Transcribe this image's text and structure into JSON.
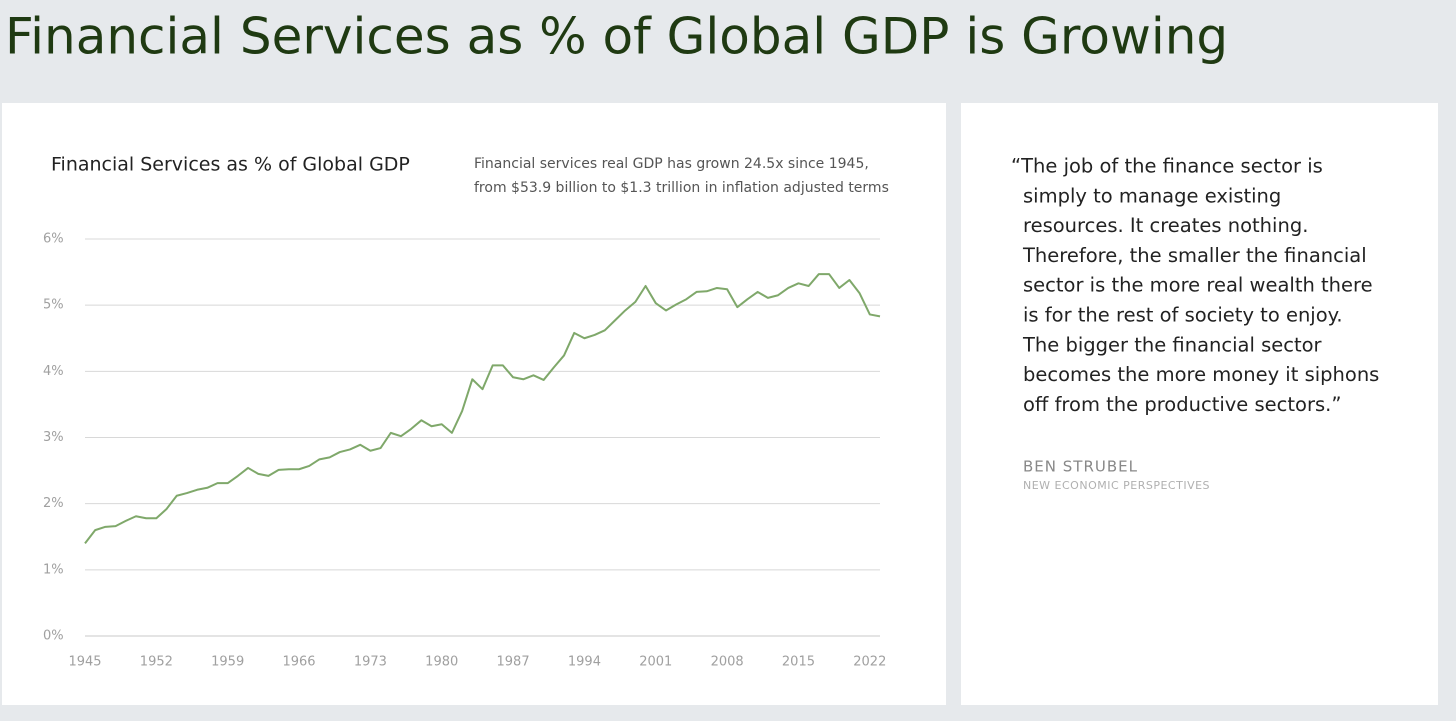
{
  "page_title": "Financial Services as % of Global GDP is Growing",
  "chart_data": {
    "type": "line",
    "title": "Financial Services as % of Global GDP",
    "subtitle": [
      "Financial services real GDP has grown 24.5x since 1945,",
      "from $53.9 billion to $1.3 trillion in inflation adjusted terms"
    ],
    "x": [
      1945,
      1946,
      1947,
      1948,
      1949,
      1950,
      1951,
      1952,
      1953,
      1954,
      1955,
      1956,
      1957,
      1958,
      1959,
      1960,
      1961,
      1962,
      1963,
      1964,
      1965,
      1966,
      1967,
      1968,
      1969,
      1970,
      1971,
      1972,
      1973,
      1974,
      1975,
      1976,
      1977,
      1978,
      1979,
      1980,
      1981,
      1982,
      1983,
      1984,
      1985,
      1986,
      1987,
      1988,
      1989,
      1990,
      1991,
      1992,
      1993,
      1994,
      1995,
      1996,
      1997,
      1998,
      1999,
      2000,
      2001,
      2002,
      2003,
      2004,
      2005,
      2006,
      2007,
      2008,
      2009,
      2010,
      2011,
      2012,
      2013,
      2014,
      2015,
      2016,
      2017,
      2018,
      2019,
      2020,
      2021,
      2022,
      2023
    ],
    "series": [
      {
        "name": "Financial Services as % of Global GDP",
        "color": "#7fa86a",
        "values": [
          1.4,
          1.6,
          1.65,
          1.66,
          1.74,
          1.81,
          1.78,
          1.78,
          1.92,
          2.12,
          2.16,
          2.21,
          2.24,
          2.31,
          2.31,
          2.42,
          2.54,
          2.45,
          2.42,
          2.51,
          2.52,
          2.52,
          2.57,
          2.67,
          2.7,
          2.78,
          2.82,
          2.89,
          2.8,
          2.84,
          3.07,
          3.02,
          3.13,
          3.26,
          3.17,
          3.2,
          3.07,
          3.4,
          3.88,
          3.73,
          4.09,
          4.09,
          3.91,
          3.88,
          3.94,
          3.87,
          4.06,
          4.24,
          4.58,
          4.5,
          4.55,
          4.62,
          4.77,
          4.92,
          5.05,
          5.29,
          5.03,
          4.92,
          5.01,
          5.09,
          5.2,
          5.21,
          5.26,
          5.24,
          4.97,
          5.09,
          5.2,
          5.11,
          5.15,
          5.26,
          5.33,
          5.29,
          5.47,
          5.47,
          5.26,
          5.38,
          5.18,
          4.86,
          4.83
        ]
      }
    ],
    "xlim": [
      1945,
      2023
    ],
    "xticks": [
      1945,
      1952,
      1959,
      1966,
      1973,
      1980,
      1987,
      1994,
      2001,
      2008,
      2015,
      2022
    ],
    "ylim": [
      0,
      6
    ],
    "yticks": [
      {
        "value": 0,
        "label": "0%"
      },
      {
        "value": 1,
        "label": "1%"
      },
      {
        "value": 2,
        "label": "2%"
      },
      {
        "value": 3,
        "label": "3%"
      },
      {
        "value": 4,
        "label": "4%"
      },
      {
        "value": 5,
        "label": "5%"
      },
      {
        "value": 6,
        "label": "6%"
      }
    ],
    "grid": true
  },
  "quote": {
    "lines": [
      "“The job of the finance sector is",
      "simply to manage existing",
      "resources. It creates nothing.",
      "Therefore, the smaller the financial",
      "sector is the more real wealth there",
      "is for the rest of society to enjoy.",
      "The bigger the financial sector",
      "becomes the more money it siphons",
      "off from the productive sectors.”"
    ],
    "author": "BEN STRUBEL",
    "source": "NEW ECONOMIC PERSPECTIVES"
  }
}
